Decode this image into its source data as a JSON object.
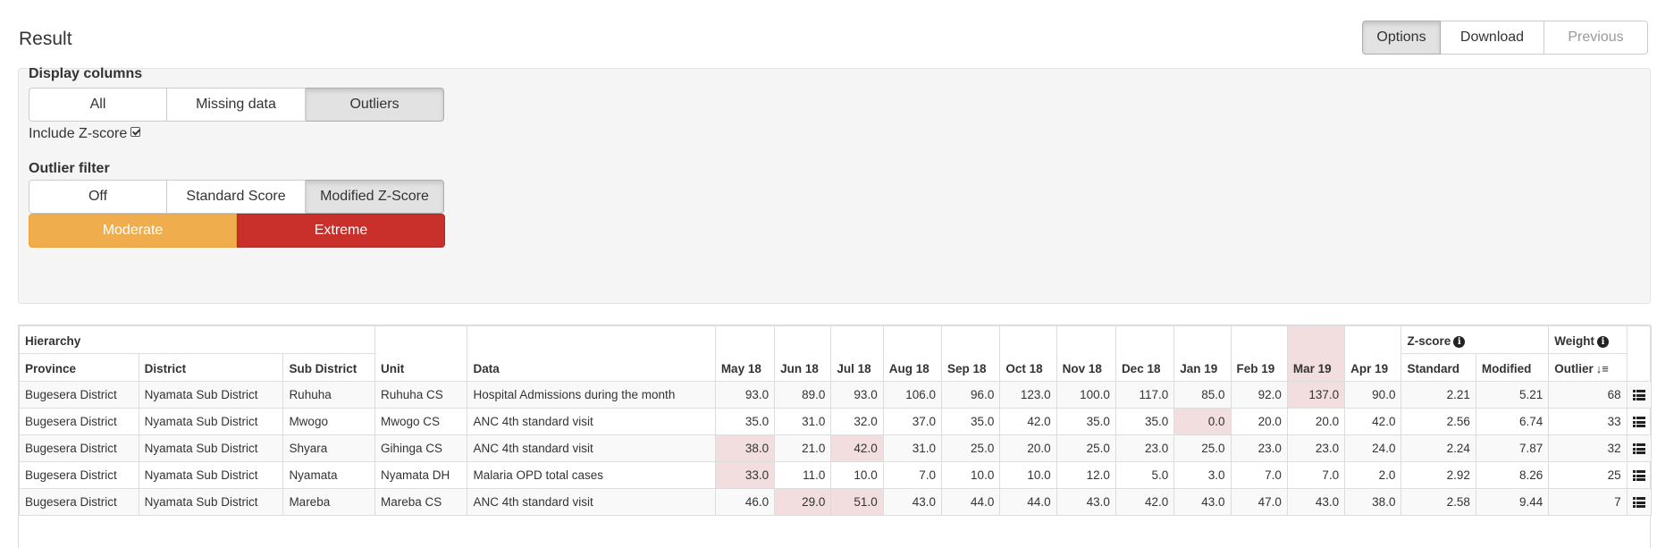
{
  "header": {
    "title": "Result",
    "buttons": {
      "options": "Options",
      "download": "Download",
      "previous": "Previous"
    }
  },
  "options": {
    "display_columns_label": "Display columns",
    "display_columns": [
      "All",
      "Missing data",
      "Outliers"
    ],
    "display_selected": "Outliers",
    "include_zscore_label": "Include Z-score",
    "include_zscore_checked": true,
    "outlier_filter_label": "Outlier filter",
    "outlier_filter": [
      "Off",
      "Standard Score",
      "Modified Z-Score"
    ],
    "outlier_filter_selected": "Modified Z-Score",
    "severity": {
      "moderate": "Moderate",
      "extreme": "Extreme"
    },
    "colors": {
      "moderate": "#f0ad4e",
      "extreme": "#c9302c",
      "highlight": "#f2dede"
    }
  },
  "table": {
    "group_headers": {
      "hierarchy": "Hierarchy",
      "zscore": "Z-score",
      "weight": "Weight"
    },
    "columns": {
      "province": "Province",
      "district": "District",
      "sub_district": "Sub District",
      "unit": "Unit",
      "data": "Data",
      "months": [
        "May 18",
        "Jun 18",
        "Jul 18",
        "Aug 18",
        "Sep 18",
        "Oct 18",
        "Nov 18",
        "Dec 18",
        "Jan 19",
        "Feb 19",
        "Mar 19",
        "Apr 19"
      ],
      "standard": "Standard",
      "modified": "Modified",
      "outlier": "Outlier"
    },
    "rows": [
      {
        "province": "Bugesera District",
        "district": "Nyamata Sub District",
        "sub_district": "Ruhuha",
        "unit": "Ruhuha CS",
        "data": "Hospital Admissions during the month",
        "values": [
          "93.0",
          "89.0",
          "93.0",
          "106.0",
          "96.0",
          "123.0",
          "100.0",
          "117.0",
          "85.0",
          "92.0",
          "137.0",
          "90.0"
        ],
        "highlight": [
          10
        ],
        "standard": "2.21",
        "modified": "5.21",
        "outlier": "68"
      },
      {
        "province": "Bugesera District",
        "district": "Nyamata Sub District",
        "sub_district": "Mwogo",
        "unit": "Mwogo CS",
        "data": "ANC 4th standard visit",
        "values": [
          "35.0",
          "31.0",
          "32.0",
          "37.0",
          "35.0",
          "42.0",
          "35.0",
          "35.0",
          "0.0",
          "20.0",
          "20.0",
          "42.0"
        ],
        "highlight": [
          8
        ],
        "standard": "2.56",
        "modified": "6.74",
        "outlier": "33"
      },
      {
        "province": "Bugesera District",
        "district": "Nyamata Sub District",
        "sub_district": "Shyara",
        "unit": "Gihinga CS",
        "data": "ANC 4th standard visit",
        "values": [
          "38.0",
          "21.0",
          "42.0",
          "31.0",
          "25.0",
          "20.0",
          "25.0",
          "23.0",
          "25.0",
          "23.0",
          "23.0",
          "24.0"
        ],
        "highlight": [
          0,
          2
        ],
        "standard": "2.24",
        "modified": "7.87",
        "outlier": "32"
      },
      {
        "province": "Bugesera District",
        "district": "Nyamata Sub District",
        "sub_district": "Nyamata",
        "unit": "Nyamata DH",
        "data": "Malaria OPD total cases",
        "values": [
          "33.0",
          "11.0",
          "10.0",
          "7.0",
          "10.0",
          "10.0",
          "12.0",
          "5.0",
          "3.0",
          "7.0",
          "7.0",
          "2.0"
        ],
        "highlight": [
          0
        ],
        "standard": "2.92",
        "modified": "8.26",
        "outlier": "25"
      },
      {
        "province": "Bugesera District",
        "district": "Nyamata Sub District",
        "sub_district": "Mareba",
        "unit": "Mareba CS",
        "data": "ANC 4th standard visit",
        "values": [
          "46.0",
          "29.0",
          "51.0",
          "43.0",
          "44.0",
          "44.0",
          "43.0",
          "42.0",
          "43.0",
          "47.0",
          "43.0",
          "38.0"
        ],
        "highlight": [
          1,
          2
        ],
        "standard": "2.58",
        "modified": "9.44",
        "outlier": "7"
      }
    ]
  }
}
